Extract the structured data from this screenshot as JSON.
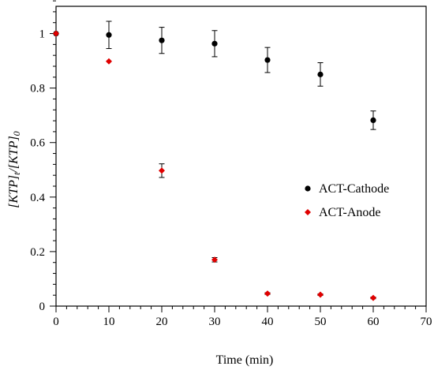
{
  "chart_data": {
    "type": "scatter",
    "title": "",
    "xlabel": "Time (min)",
    "ylabel": {
      "parts": [
        {
          "text": "[KTP]",
          "style": "italic"
        },
        {
          "text": "t",
          "style": "italic-sub"
        },
        {
          "text": "/[KTP]",
          "style": "italic"
        },
        {
          "text": "0",
          "style": "italic-sub"
        }
      ]
    },
    "xlim": [
      0,
      70
    ],
    "ylim": [
      0,
      1.1
    ],
    "x_ticks": [
      0,
      10,
      20,
      30,
      40,
      50,
      60,
      70
    ],
    "y_ticks": [
      0,
      0.2,
      0.4,
      0.6,
      0.8,
      1
    ],
    "y_tick_labels": [
      "0",
      "0.2",
      "0.4",
      "0.6",
      "0.8",
      "1"
    ],
    "x_minor_step": 2,
    "y_minor_step": 0.04,
    "grid": false,
    "legend_position": "right-middle",
    "series": [
      {
        "name": "ACT-Cathode",
        "marker": "circle",
        "color": "#000000",
        "points": [
          {
            "x": 0,
            "y": 1.0,
            "err": 0.0
          },
          {
            "x": 10,
            "y": 0.995,
            "err": 0.05
          },
          {
            "x": 20,
            "y": 0.975,
            "err": 0.048
          },
          {
            "x": 30,
            "y": 0.963,
            "err": 0.048
          },
          {
            "x": 40,
            "y": 0.903,
            "err": 0.046
          },
          {
            "x": 50,
            "y": 0.85,
            "err": 0.043
          },
          {
            "x": 60,
            "y": 0.682,
            "err": 0.034
          }
        ]
      },
      {
        "name": "ACT-Anode",
        "marker": "diamond",
        "color": "#e00000",
        "points": [
          {
            "x": 0,
            "y": 1.0,
            "err": 0.0
          },
          {
            "x": 10,
            "y": 0.898,
            "err": 0.0
          },
          {
            "x": 20,
            "y": 0.497,
            "err": 0.025
          },
          {
            "x": 30,
            "y": 0.17,
            "err": 0.008
          },
          {
            "x": 40,
            "y": 0.046,
            "err": 0.003
          },
          {
            "x": 50,
            "y": 0.042,
            "err": 0.003
          },
          {
            "x": 60,
            "y": 0.03,
            "err": 0.003
          }
        ]
      }
    ]
  }
}
